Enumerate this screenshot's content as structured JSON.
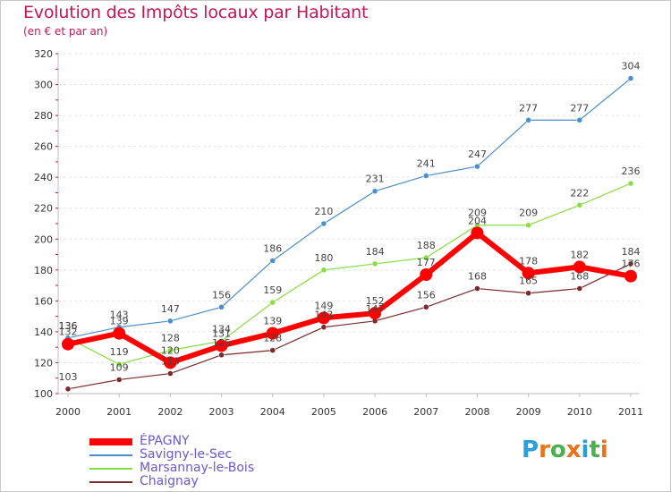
{
  "chart_data": {
    "type": "line",
    "title": "Evolution des Impôts locaux par Habitant",
    "subtitle": "(en € et par an)",
    "xlabel": "",
    "ylabel": "",
    "ylim": [
      100,
      320
    ],
    "yticks": [
      100,
      120,
      140,
      160,
      180,
      200,
      220,
      240,
      260,
      280,
      300,
      320
    ],
    "categories": [
      "2000",
      "2001",
      "2002",
      "2003",
      "2004",
      "2005",
      "2006",
      "2007",
      "2008",
      "2009",
      "2010",
      "2011"
    ],
    "series": [
      {
        "name": "ÉPAGNY",
        "color": "#ff0000",
        "values": [
          132,
          139,
          120,
          131,
          139,
          149,
          152,
          177,
          204,
          178,
          182,
          176
        ]
      },
      {
        "name": "Savigny-le-Sec",
        "color": "#4a8fcc",
        "values": [
          136,
          143,
          147,
          156,
          186,
          210,
          231,
          241,
          247,
          277,
          277,
          304
        ]
      },
      {
        "name": "Marsannay-le-Bois",
        "color": "#88dd44",
        "values": [
          136,
          119,
          128,
          134,
          159,
          180,
          184,
          188,
          209,
          209,
          222,
          236
        ]
      },
      {
        "name": "Chaignay",
        "color": "#7a2a2a",
        "values": [
          103,
          109,
          113,
          125,
          128,
          143,
          147,
          156,
          168,
          165,
          168,
          184
        ]
      }
    ]
  },
  "logo": {
    "text": "Proxiti",
    "letters": [
      "P",
      "r",
      "o",
      "x",
      "i",
      "t",
      "i"
    ],
    "colors": [
      "#2a9fd8",
      "#e8731a",
      "#4caf50",
      "#e8731a",
      "#2a9fd8",
      "#4caf50",
      "#e8731a"
    ]
  }
}
